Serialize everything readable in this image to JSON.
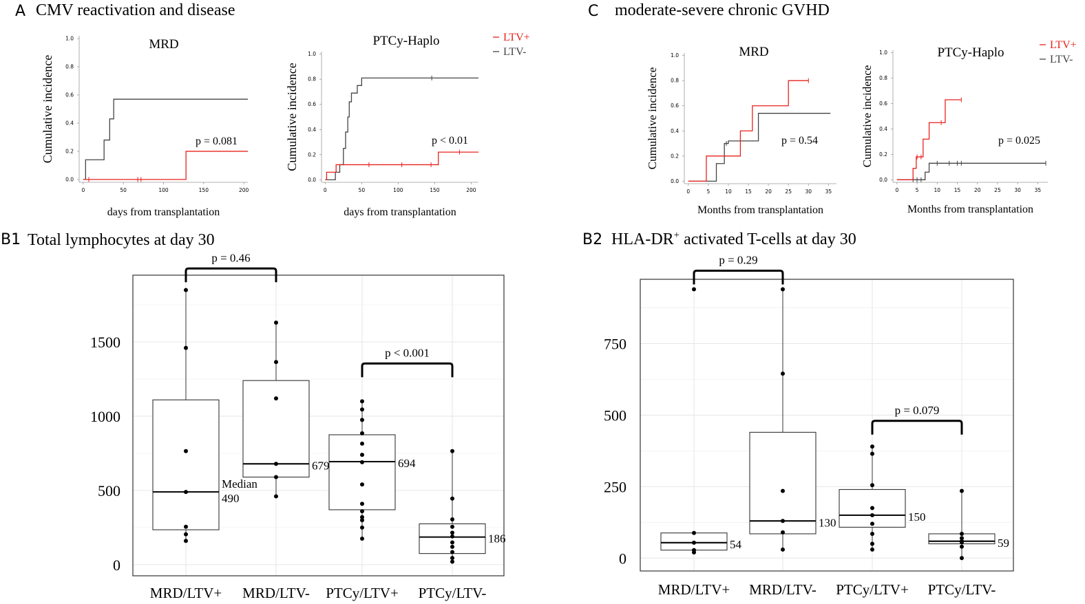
{
  "colors": {
    "ltv_pos": "#e8211c",
    "ltv_neg": "#444444",
    "grid": "#e6e6e6",
    "text": "#000000"
  },
  "panels": {
    "A": {
      "letter": "A",
      "title": "CMV reactivation and disease"
    },
    "C": {
      "letter": "C",
      "title": "moderate-severe chronic GVHD"
    },
    "B1": {
      "letter": "B1",
      "title": "Total lymphocytes at day 30"
    },
    "B2": {
      "letter": "B2",
      "title": "HLA-DR",
      "title_sup": "+",
      "title_rest": " activated T-cells at day 30"
    }
  },
  "chart_data": [
    {
      "id": "A-MRD",
      "type": "line",
      "panel": "A",
      "title": "MRD",
      "xlabel": "days from transplantation",
      "ylabel": "Cumulative incidence",
      "xlim": [
        -5,
        205
      ],
      "ylim": [
        -0.02,
        1.02
      ],
      "xticks": [
        0,
        50,
        100,
        150,
        200
      ],
      "xtick_labels": [
        "0",
        "50",
        "100",
        "150",
        "200"
      ],
      "yticks": [
        0,
        0.2,
        0.4,
        0.6,
        0.8,
        1.0
      ],
      "ytick_labels": [
        "0.0",
        "0.2",
        "0.4",
        "0.6",
        "0.8",
        "1.0"
      ],
      "p_label": "p = 0.081",
      "legend": null,
      "series": [
        {
          "name": "LTV-",
          "color_key": "ltv_neg",
          "steps": [
            [
              0,
              0
            ],
            [
              3,
              0.14
            ],
            [
              26,
              0.28
            ],
            [
              33,
              0.43
            ],
            [
              38,
              0.57
            ],
            [
              205,
              0.57
            ]
          ],
          "censor": []
        },
        {
          "name": "LTV+",
          "color_key": "ltv_pos",
          "steps": [
            [
              0,
              0
            ],
            [
              128,
              0.2
            ],
            [
              205,
              0.2
            ]
          ],
          "censor": [
            [
              7,
              0
            ],
            [
              68,
              0
            ],
            [
              72,
              0
            ]
          ]
        }
      ]
    },
    {
      "id": "A-PTCy",
      "type": "line",
      "panel": "A",
      "title": "PTCy-Haplo",
      "xlabel": "days from transplantation",
      "ylabel": "Cumulative incidence",
      "xlim": [
        -5,
        210
      ],
      "ylim": [
        -0.02,
        1.02
      ],
      "xticks": [
        0,
        50,
        100,
        150,
        200
      ],
      "xtick_labels": [
        "0",
        "50",
        "100",
        "150",
        "200"
      ],
      "yticks": [
        0,
        0.2,
        0.4,
        0.6,
        0.8,
        1.0
      ],
      "ytick_labels": [
        "0.0",
        "0.2",
        "0.4",
        "0.6",
        "0.8",
        "1.0"
      ],
      "p_label": "p < 0.01",
      "legend": [
        "LTV+",
        "LTV-"
      ],
      "series": [
        {
          "name": "LTV-",
          "color_key": "ltv_neg",
          "steps": [
            [
              0,
              0
            ],
            [
              14,
              0.06
            ],
            [
              20,
              0.12
            ],
            [
              25,
              0.25
            ],
            [
              28,
              0.38
            ],
            [
              31,
              0.5
            ],
            [
              33,
              0.62
            ],
            [
              36,
              0.69
            ],
            [
              44,
              0.75
            ],
            [
              50,
              0.81
            ],
            [
              210,
              0.81
            ]
          ],
          "censor": [
            [
              146,
              0.81
            ]
          ]
        },
        {
          "name": "LTV+",
          "color_key": "ltv_pos",
          "steps": [
            [
              0,
              0
            ],
            [
              2,
              0.06
            ],
            [
              15,
              0.12
            ],
            [
              155,
              0.22
            ],
            [
              210,
              0.22
            ]
          ],
          "censor": [
            [
              60,
              0.12
            ],
            [
              105,
              0.12
            ],
            [
              145,
              0.12
            ],
            [
              184,
              0.22
            ]
          ]
        }
      ]
    },
    {
      "id": "C-MRD",
      "type": "line",
      "panel": "C",
      "title": "MRD",
      "xlabel": "Months from transplantation",
      "ylabel": "Cumulative incidence",
      "xlim": [
        -1,
        37
      ],
      "ylim": [
        -0.02,
        1.02
      ],
      "xticks": [
        0,
        5,
        10,
        15,
        20,
        25,
        30,
        35
      ],
      "xtick_labels": [
        "0",
        "5",
        "10",
        "15",
        "20",
        "25",
        "30",
        "35"
      ],
      "yticks": [
        0,
        0.2,
        0.4,
        0.6,
        0.8,
        1.0
      ],
      "ytick_labels": [
        "0.0",
        "0.2",
        "0.4",
        "0.6",
        "0.8",
        "1.0"
      ],
      "p_label": "p = 0.54",
      "legend": null,
      "series": [
        {
          "name": "LTV-",
          "color_key": "ltv_neg",
          "steps": [
            [
              0,
              0
            ],
            [
              7,
              0.14
            ],
            [
              9,
              0.3
            ],
            [
              10,
              0.32
            ],
            [
              15,
              0.32
            ],
            [
              17.5,
              0.54
            ],
            [
              35.5,
              0.54
            ]
          ],
          "censor": [
            [
              9.5,
              0.3
            ]
          ]
        },
        {
          "name": "LTV+",
          "color_key": "ltv_pos",
          "steps": [
            [
              0,
              0
            ],
            [
              4.5,
              0.2
            ],
            [
              13,
              0.4
            ],
            [
              16,
              0.6
            ],
            [
              25,
              0.8
            ],
            [
              30,
              0.8
            ]
          ],
          "censor": [
            [
              30,
              0.8
            ]
          ]
        }
      ]
    },
    {
      "id": "C-PTCy",
      "type": "line",
      "panel": "C",
      "title": "PTCy-Haplo",
      "xlabel": "Months from transplantation",
      "ylabel": "Cumulative incidence",
      "xlim": [
        -1,
        37.5
      ],
      "ylim": [
        -0.02,
        1.02
      ],
      "xticks": [
        0,
        5,
        10,
        15,
        20,
        25,
        30,
        35
      ],
      "xtick_labels": [
        "0",
        "5",
        "10",
        "15",
        "20",
        "25",
        "30",
        "35"
      ],
      "yticks": [
        0,
        0.2,
        0.4,
        0.6,
        0.8,
        1.0
      ],
      "ytick_labels": [
        "0.0",
        "0.2",
        "0.4",
        "0.6",
        "0.8",
        "1.0"
      ],
      "p_label": "p = 0.025",
      "legend": [
        "LTV+",
        "LTV-"
      ],
      "series": [
        {
          "name": "LTV-",
          "color_key": "ltv_neg",
          "steps": [
            [
              0,
              0
            ],
            [
              7,
              0.06
            ],
            [
              8,
              0.13
            ],
            [
              37,
              0.13
            ]
          ],
          "censor": [
            [
              4,
              0
            ],
            [
              5,
              0
            ],
            [
              6,
              0
            ],
            [
              10,
              0.13
            ],
            [
              13,
              0.13
            ],
            [
              15,
              0.13
            ],
            [
              16,
              0.13
            ],
            [
              37,
              0.13
            ]
          ]
        },
        {
          "name": "LTV+",
          "color_key": "ltv_pos",
          "steps": [
            [
              0,
              0
            ],
            [
              4,
              0.09
            ],
            [
              4.8,
              0.18
            ],
            [
              6.5,
              0.32
            ],
            [
              8,
              0.45
            ],
            [
              11,
              0.45
            ],
            [
              12,
              0.63
            ],
            [
              16,
              0.63
            ]
          ],
          "censor": [
            [
              5,
              0.18
            ],
            [
              6,
              0.18
            ],
            [
              11,
              0.45
            ],
            [
              16,
              0.63
            ]
          ]
        }
      ]
    },
    {
      "id": "B1",
      "type": "box",
      "panel": "B1",
      "ylim": [
        -75,
        1950
      ],
      "yticks": [
        0,
        500,
        1000,
        1500
      ],
      "ytick_labels": [
        "0",
        "500",
        "1000",
        "1500"
      ],
      "categories": [
        "MRD/LTV+",
        "MRD/LTV-",
        "PTCy/LTV+",
        "PTCy/LTV-"
      ],
      "boxes": [
        {
          "q1": 235,
          "median": 490,
          "q3": 1110,
          "whisker_low": 160,
          "whisker_high": 1850,
          "median_label": "490",
          "median_prefix": "Median",
          "points": [
            160,
            205,
            255,
            490,
            765,
            1460,
            1850
          ]
        },
        {
          "q1": 590,
          "median": 679,
          "q3": 1240,
          "whisker_low": 460,
          "whisker_high": 1630,
          "median_label": "679",
          "median_prefix": "",
          "points": [
            460,
            590,
            679,
            1120,
            1365,
            1630
          ]
        },
        {
          "q1": 370,
          "median": 694,
          "q3": 875,
          "whisker_low": 175,
          "whisker_high": 1100,
          "median_label": "694",
          "median_prefix": "",
          "points": [
            175,
            250,
            300,
            320,
            360,
            410,
            540,
            690,
            740,
            815,
            885,
            975,
            1045,
            1100
          ]
        },
        {
          "q1": 75,
          "median": 186,
          "q3": 275,
          "whisker_low": 20,
          "whisker_high": 765,
          "median_label": "186",
          "median_prefix": "",
          "points": [
            20,
            45,
            85,
            120,
            150,
            190,
            215,
            255,
            305,
            445,
            765
          ]
        }
      ],
      "comparisons": [
        {
          "from": 0,
          "to": 1,
          "label": "p = 0.46",
          "y": 1995
        },
        {
          "from": 2,
          "to": 3,
          "label": "p < 0.001",
          "y": 1355
        }
      ]
    },
    {
      "id": "B2",
      "type": "box",
      "panel": "B2",
      "ylim": [
        -45,
        975
      ],
      "yticks": [
        0,
        250,
        500,
        750
      ],
      "ytick_labels": [
        "0",
        "250",
        "500",
        "750"
      ],
      "categories": [
        "MRD/LTV+",
        "MRD/LTV-",
        "PTCy/LTV+",
        "PTCy/LTV-"
      ],
      "boxes": [
        {
          "q1": 28,
          "median": 54,
          "q3": 88,
          "whisker_low": 20,
          "whisker_high": 940,
          "median_label": "54",
          "median_prefix": "",
          "whisker": false,
          "points": [
            20,
            28,
            54,
            88,
            940
          ]
        },
        {
          "q1": 85,
          "median": 130,
          "q3": 440,
          "whisker_low": 30,
          "whisker_high": 940,
          "median_label": "130",
          "median_prefix": "",
          "points": [
            30,
            90,
            130,
            235,
            645,
            940
          ]
        },
        {
          "q1": 108,
          "median": 150,
          "q3": 240,
          "whisker_low": 30,
          "whisker_high": 390,
          "median_label": "150",
          "median_prefix": "",
          "points": [
            30,
            50,
            85,
            120,
            150,
            175,
            255,
            365,
            390
          ]
        },
        {
          "q1": 50,
          "median": 59,
          "q3": 85,
          "whisker_low": 0,
          "whisker_high": 235,
          "median_label": "59",
          "median_prefix": "",
          "points": [
            0,
            40,
            55,
            59,
            70,
            85,
            235
          ]
        }
      ],
      "comparisons": [
        {
          "from": 0,
          "to": 1,
          "label": "p = 0.29",
          "y": 1005
        },
        {
          "from": 2,
          "to": 3,
          "label": "p = 0.079",
          "y": 480
        }
      ]
    }
  ]
}
